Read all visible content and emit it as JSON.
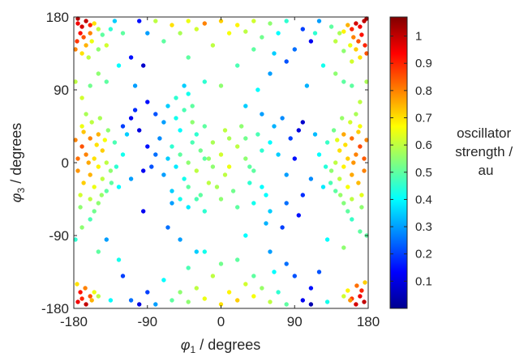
{
  "chart_data": {
    "type": "scatter",
    "xlabel": {
      "symbol": "φ",
      "sub": "1",
      "rest": " / degrees"
    },
    "ylabel": {
      "symbol": "φ",
      "sub": "3",
      "rest": " / degrees"
    },
    "xlim": [
      -180,
      180
    ],
    "ylim": [
      -180,
      180
    ],
    "xticks": [
      -180,
      -90,
      0,
      90,
      180
    ],
    "xtick_labels": [
      "-180",
      "-90",
      "0",
      "90",
      "180"
    ],
    "yticks": [
      -180,
      -90,
      0,
      90,
      180
    ],
    "ytick_labels": [
      "-180",
      "-90",
      "0",
      "90",
      "180"
    ],
    "colorbar": {
      "label_lines": [
        "oscillator",
        "strength /",
        "au"
      ],
      "colormap": "jet",
      "range": [
        0,
        1.07
      ],
      "ticks": [
        0.1,
        0.2,
        0.3,
        0.4,
        0.5,
        0.6,
        0.7,
        0.8,
        0.9,
        1
      ],
      "tick_labels": [
        "0.1",
        "0.2",
        "0.3",
        "0.4",
        "0.5",
        "0.6",
        "0.7",
        "0.8",
        "0.9",
        "1"
      ]
    },
    "grid": false,
    "points": [
      [
        -175,
        172,
        0.95
      ],
      [
        -170,
        168,
        0.98
      ],
      [
        -165,
        175,
        1.0
      ],
      [
        -160,
        170,
        0.9
      ],
      [
        -172,
        160,
        0.92
      ],
      [
        -168,
        155,
        0.85
      ],
      [
        -160,
        160,
        0.8
      ],
      [
        -155,
        172,
        0.7
      ],
      [
        -150,
        165,
        0.6
      ],
      [
        -176,
        150,
        0.88
      ],
      [
        -165,
        145,
        0.75
      ],
      [
        -158,
        150,
        0.65
      ],
      [
        -150,
        140,
        0.55
      ],
      [
        -145,
        158,
        0.5
      ],
      [
        -178,
        140,
        0.8
      ],
      [
        -170,
        135,
        0.7
      ],
      [
        -140,
        145,
        0.62
      ],
      [
        -135,
        165,
        0.45
      ],
      [
        -162,
        130,
        0.6
      ],
      [
        -175,
        178,
        1.02
      ],
      [
        175,
        175,
        1.0
      ],
      [
        170,
        168,
        0.95
      ],
      [
        165,
        172,
        0.98
      ],
      [
        160,
        165,
        0.9
      ],
      [
        172,
        158,
        0.92
      ],
      [
        168,
        150,
        0.85
      ],
      [
        162,
        155,
        0.8
      ],
      [
        155,
        170,
        0.75
      ],
      [
        150,
        162,
        0.68
      ],
      [
        176,
        145,
        0.9
      ],
      [
        165,
        140,
        0.72
      ],
      [
        158,
        145,
        0.65
      ],
      [
        150,
        138,
        0.55
      ],
      [
        145,
        160,
        0.58
      ],
      [
        178,
        135,
        0.85
      ],
      [
        170,
        130,
        0.7
      ],
      [
        140,
        150,
        0.6
      ],
      [
        135,
        168,
        0.5
      ],
      [
        160,
        125,
        0.62
      ],
      [
        178,
        178,
        1.05
      ],
      [
        -175,
        -172,
        0.95
      ],
      [
        -170,
        -168,
        0.9
      ],
      [
        -165,
        -175,
        1.0
      ],
      [
        -160,
        -165,
        0.85
      ],
      [
        -172,
        -160,
        0.92
      ],
      [
        -166,
        -155,
        0.8
      ],
      [
        -158,
        -170,
        0.75
      ],
      [
        -150,
        -165,
        0.6
      ],
      [
        -176,
        -150,
        0.7
      ],
      [
        -155,
        -160,
        0.65
      ],
      [
        175,
        -172,
        1.0
      ],
      [
        170,
        -165,
        0.95
      ],
      [
        165,
        -175,
        0.98
      ],
      [
        160,
        -168,
        0.88
      ],
      [
        172,
        -158,
        0.9
      ],
      [
        166,
        -152,
        0.82
      ],
      [
        158,
        -170,
        0.78
      ],
      [
        150,
        -165,
        0.62
      ],
      [
        176,
        -148,
        0.72
      ],
      [
        155,
        -158,
        0.68
      ],
      [
        -160,
        30,
        0.8
      ],
      [
        -150,
        35,
        0.75
      ],
      [
        -170,
        20,
        0.85
      ],
      [
        -165,
        10,
        0.8
      ],
      [
        -155,
        5,
        0.7
      ],
      [
        -145,
        15,
        0.72
      ],
      [
        -175,
        -10,
        0.78
      ],
      [
        -160,
        -15,
        0.75
      ],
      [
        -150,
        -5,
        0.68
      ],
      [
        -140,
        0,
        0.6
      ],
      [
        -168,
        -25,
        0.72
      ],
      [
        -155,
        -30,
        0.65
      ],
      [
        -145,
        -20,
        0.6
      ],
      [
        -135,
        -10,
        0.55
      ],
      [
        -170,
        45,
        0.65
      ],
      [
        -158,
        50,
        0.6
      ],
      [
        -148,
        55,
        0.58
      ],
      [
        -138,
        40,
        0.55
      ],
      [
        -172,
        -40,
        0.62
      ],
      [
        -160,
        -45,
        0.6
      ],
      [
        -150,
        -50,
        0.55
      ],
      [
        -140,
        -35,
        0.5
      ],
      [
        -130,
        25,
        0.48
      ],
      [
        -128,
        -5,
        0.45
      ],
      [
        -165,
        60,
        0.58
      ],
      [
        -155,
        -60,
        0.52
      ],
      [
        -175,
        5,
        0.82
      ],
      [
        -162,
        0,
        0.76
      ],
      [
        -152,
        22,
        0.7
      ],
      [
        -142,
        28,
        0.66
      ],
      [
        -168,
        38,
        0.73
      ],
      [
        -178,
        28,
        0.8
      ],
      [
        -146,
        -40,
        0.56
      ],
      [
        -134,
        -25,
        0.5
      ],
      [
        -120,
        10,
        0.42
      ],
      [
        -125,
        -30,
        0.4
      ],
      [
        -160,
        -70,
        0.48
      ],
      [
        -172,
        -55,
        0.55
      ],
      [
        -110,
        -20,
        0.3
      ],
      [
        -115,
        35,
        0.35
      ],
      [
        160,
        30,
        0.82
      ],
      [
        150,
        35,
        0.76
      ],
      [
        170,
        20,
        0.86
      ],
      [
        165,
        10,
        0.8
      ],
      [
        155,
        5,
        0.72
      ],
      [
        145,
        15,
        0.7
      ],
      [
        175,
        -10,
        0.8
      ],
      [
        160,
        -15,
        0.76
      ],
      [
        150,
        -5,
        0.68
      ],
      [
        140,
        0,
        0.6
      ],
      [
        168,
        -25,
        0.74
      ],
      [
        155,
        -30,
        0.66
      ],
      [
        145,
        -20,
        0.6
      ],
      [
        135,
        -10,
        0.55
      ],
      [
        170,
        45,
        0.66
      ],
      [
        158,
        50,
        0.62
      ],
      [
        148,
        55,
        0.56
      ],
      [
        138,
        40,
        0.52
      ],
      [
        172,
        -40,
        0.64
      ],
      [
        160,
        -45,
        0.6
      ],
      [
        150,
        -50,
        0.54
      ],
      [
        140,
        -35,
        0.5
      ],
      [
        130,
        25,
        0.46
      ],
      [
        128,
        -5,
        0.44
      ],
      [
        165,
        60,
        0.58
      ],
      [
        155,
        -60,
        0.5
      ],
      [
        175,
        5,
        0.84
      ],
      [
        162,
        0,
        0.78
      ],
      [
        152,
        22,
        0.7
      ],
      [
        142,
        28,
        0.64
      ],
      [
        168,
        38,
        0.72
      ],
      [
        178,
        28,
        0.8
      ],
      [
        146,
        -40,
        0.56
      ],
      [
        134,
        -25,
        0.48
      ],
      [
        120,
        10,
        0.4
      ],
      [
        125,
        -30,
        0.38
      ],
      [
        160,
        -70,
        0.46
      ],
      [
        172,
        -55,
        0.55
      ],
      [
        110,
        -20,
        0.28
      ],
      [
        115,
        35,
        0.33
      ],
      [
        -60,
        20,
        0.45
      ],
      [
        -50,
        10,
        0.5
      ],
      [
        -40,
        0,
        0.55
      ],
      [
        -30,
        -10,
        0.6
      ],
      [
        -20,
        5,
        0.5
      ],
      [
        -45,
        -20,
        0.42
      ],
      [
        -55,
        -5,
        0.38
      ],
      [
        -35,
        25,
        0.48
      ],
      [
        -25,
        15,
        0.52
      ],
      [
        -65,
        5,
        0.35
      ],
      [
        -70,
        -15,
        0.3
      ],
      [
        -75,
        30,
        0.28
      ],
      [
        -10,
        -5,
        0.55
      ],
      [
        -15,
        -25,
        0.6
      ],
      [
        -30,
        35,
        0.45
      ],
      [
        -50,
        40,
        0.4
      ],
      [
        -40,
        -30,
        0.5
      ],
      [
        -60,
        -35,
        0.35
      ],
      [
        -80,
        10,
        0.25
      ],
      [
        -85,
        -5,
        0.22
      ],
      [
        -90,
        20,
        0.15
      ],
      [
        -95,
        -10,
        0.12
      ],
      [
        -100,
        40,
        0.1
      ],
      [
        -70,
        50,
        0.3
      ],
      [
        -55,
        55,
        0.42
      ],
      [
        -45,
        65,
        0.48
      ],
      [
        -35,
        50,
        0.55
      ],
      [
        -65,
        70,
        0.35
      ],
      [
        -20,
        45,
        0.5
      ],
      [
        -10,
        25,
        0.58
      ],
      [
        0,
        10,
        0.62
      ],
      [
        10,
        -5,
        0.65
      ],
      [
        20,
        20,
        0.6
      ],
      [
        30,
        5,
        0.55
      ],
      [
        40,
        -10,
        0.5
      ],
      [
        50,
        15,
        0.45
      ],
      [
        60,
        25,
        0.4
      ],
      [
        70,
        10,
        0.35
      ],
      [
        80,
        -15,
        0.3
      ],
      [
        45,
        35,
        0.48
      ],
      [
        25,
        45,
        0.55
      ],
      [
        5,
        40,
        0.6
      ],
      [
        -5,
        -30,
        0.58
      ],
      [
        15,
        -35,
        0.52
      ],
      [
        35,
        -25,
        0.45
      ],
      [
        55,
        -40,
        0.4
      ],
      [
        65,
        45,
        0.32
      ],
      [
        75,
        55,
        0.28
      ],
      [
        85,
        30,
        0.2
      ],
      [
        90,
        5,
        0.15
      ],
      [
        95,
        40,
        0.1
      ],
      [
        100,
        50,
        0.08
      ],
      [
        -110,
        55,
        0.12
      ],
      [
        -120,
        45,
        0.2
      ],
      [
        -105,
        65,
        0.18
      ],
      [
        -80,
        60,
        0.22
      ],
      [
        -90,
        75,
        0.15
      ],
      [
        -60,
        -50,
        0.3
      ],
      [
        -40,
        -55,
        0.38
      ],
      [
        -20,
        -60,
        0.45
      ],
      [
        0,
        -45,
        0.55
      ],
      [
        20,
        -55,
        0.5
      ],
      [
        40,
        -50,
        0.42
      ],
      [
        60,
        -60,
        0.35
      ],
      [
        80,
        -50,
        0.25
      ],
      [
        100,
        -40,
        0.18
      ],
      [
        -30,
        -45,
        0.48
      ],
      [
        10,
        30,
        0.58
      ],
      [
        30,
        30,
        0.52
      ],
      [
        -25,
        -40,
        0.5
      ],
      [
        5,
        -15,
        0.6
      ],
      [
        -15,
        5,
        0.56
      ],
      [
        35,
        -5,
        0.5
      ],
      [
        -50,
        -45,
        0.42
      ],
      [
        50,
        -30,
        0.4
      ],
      [
        -35,
        70,
        0.5
      ],
      [
        -55,
        80,
        0.45
      ],
      [
        -40,
        85,
        0.42
      ],
      [
        50,
        60,
        0.3
      ],
      [
        30,
        70,
        0.35
      ],
      [
        -150,
        110,
        0.55
      ],
      [
        -140,
        100,
        0.5
      ],
      [
        -125,
        120,
        0.4
      ],
      [
        -160,
        95,
        0.52
      ],
      [
        -105,
        95,
        0.3
      ],
      [
        140,
        110,
        0.55
      ],
      [
        150,
        100,
        0.5
      ],
      [
        125,
        120,
        0.42
      ],
      [
        160,
        95,
        0.5
      ],
      [
        105,
        95,
        0.32
      ],
      [
        -80,
        175,
        0.6
      ],
      [
        -60,
        170,
        0.7
      ],
      [
        -40,
        175,
        0.65
      ],
      [
        -20,
        172,
        0.8
      ],
      [
        0,
        175,
        0.72
      ],
      [
        20,
        170,
        0.68
      ],
      [
        40,
        175,
        0.62
      ],
      [
        60,
        172,
        0.55
      ],
      [
        80,
        175,
        0.45
      ],
      [
        -50,
        160,
        0.58
      ],
      [
        -30,
        165,
        0.62
      ],
      [
        10,
        160,
        0.66
      ],
      [
        30,
        162,
        0.6
      ],
      [
        50,
        155,
        0.52
      ],
      [
        70,
        160,
        0.4
      ],
      [
        -70,
        150,
        0.5
      ],
      [
        -10,
        145,
        0.6
      ],
      [
        40,
        140,
        0.5
      ],
      [
        65,
        135,
        0.35
      ],
      [
        -90,
        160,
        0.3
      ],
      [
        -100,
        175,
        0.15
      ],
      [
        100,
        165,
        0.2
      ],
      [
        110,
        150,
        0.12
      ],
      [
        90,
        140,
        0.25
      ],
      [
        -40,
        130,
        0.5
      ],
      [
        0,
        95,
        0.55
      ],
      [
        20,
        120,
        0.48
      ],
      [
        60,
        110,
        0.3
      ],
      [
        -20,
        100,
        0.45
      ],
      [
        80,
        125,
        0.22
      ],
      [
        -80,
        -175,
        0.3
      ],
      [
        -60,
        -170,
        0.5
      ],
      [
        -40,
        -172,
        0.55
      ],
      [
        -20,
        -168,
        0.65
      ],
      [
        0,
        -175,
        0.7
      ],
      [
        20,
        -170,
        0.72
      ],
      [
        40,
        -165,
        0.66
      ],
      [
        60,
        -172,
        0.6
      ],
      [
        80,
        -175,
        0.5
      ],
      [
        -50,
        -160,
        0.55
      ],
      [
        -30,
        -155,
        0.6
      ],
      [
        10,
        -160,
        0.68
      ],
      [
        30,
        -150,
        0.62
      ],
      [
        50,
        -155,
        0.56
      ],
      [
        70,
        -160,
        0.45
      ],
      [
        -70,
        -145,
        0.4
      ],
      [
        -10,
        -140,
        0.6
      ],
      [
        40,
        -140,
        0.5
      ],
      [
        65,
        -135,
        0.4
      ],
      [
        -90,
        -160,
        0.2
      ],
      [
        -100,
        -175,
        0.1
      ],
      [
        100,
        -170,
        0.12
      ],
      [
        110,
        -155,
        0.15
      ],
      [
        90,
        -140,
        0.22
      ],
      [
        -40,
        -130,
        0.48
      ],
      [
        0,
        -125,
        0.52
      ],
      [
        20,
        -120,
        0.5
      ],
      [
        60,
        -110,
        0.3
      ],
      [
        -20,
        -110,
        0.42
      ],
      [
        80,
        -125,
        0.25
      ],
      [
        -150,
        -110,
        0.5
      ],
      [
        -140,
        -95,
        0.3
      ],
      [
        -125,
        -120,
        0.42
      ],
      [
        150,
        -105,
        0.55
      ],
      [
        130,
        -95,
        0.4
      ],
      [
        -130,
        175,
        0.35
      ],
      [
        -120,
        160,
        0.5
      ],
      [
        120,
        175,
        0.3
      ],
      [
        115,
        160,
        0.45
      ],
      [
        -135,
        -170,
        0.4
      ],
      [
        130,
        -172,
        0.42
      ],
      [
        -110,
        -170,
        0.25
      ],
      [
        110,
        -175,
        0.05
      ],
      [
        -178,
        100,
        0.6
      ],
      [
        178,
        100,
        0.58
      ],
      [
        -178,
        -95,
        0.45
      ],
      [
        178,
        -90,
        0.5
      ],
      [
        -170,
        80,
        0.62
      ],
      [
        170,
        75,
        0.6
      ],
      [
        -170,
        -80,
        0.55
      ],
      [
        170,
        -85,
        0.5
      ],
      [
        -110,
        130,
        0.15
      ],
      [
        -95,
        120,
        0.08
      ],
      [
        -120,
        -140,
        0.2
      ],
      [
        120,
        -135,
        0.22
      ],
      [
        -50,
        -95,
        0.3
      ],
      [
        -30,
        -110,
        0.35
      ],
      [
        30,
        -90,
        0.4
      ],
      [
        55,
        -75,
        0.32
      ],
      [
        -65,
        -80,
        0.25
      ],
      [
        75,
        -80,
        0.2
      ],
      [
        -95,
        -60,
        0.12
      ],
      [
        95,
        -65,
        0.15
      ],
      [
        45,
        90,
        0.4
      ],
      [
        -45,
        95,
        0.35
      ]
    ]
  }
}
